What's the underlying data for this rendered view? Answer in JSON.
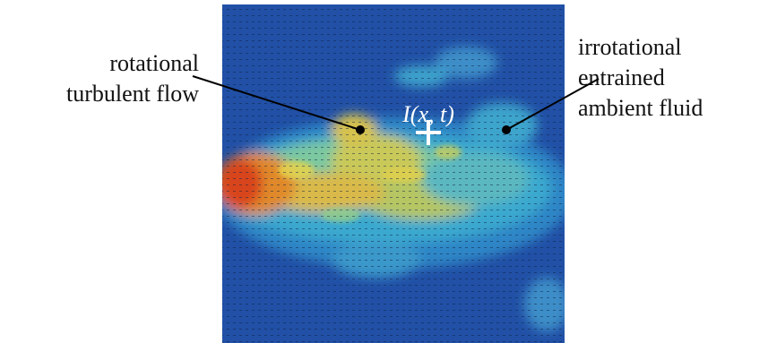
{
  "labels": {
    "left": [
      "rotational",
      "turbulent flow"
    ],
    "right": [
      "irrotational",
      "entrained",
      "ambient fluid"
    ],
    "point": "I(x, t)"
  }
}
